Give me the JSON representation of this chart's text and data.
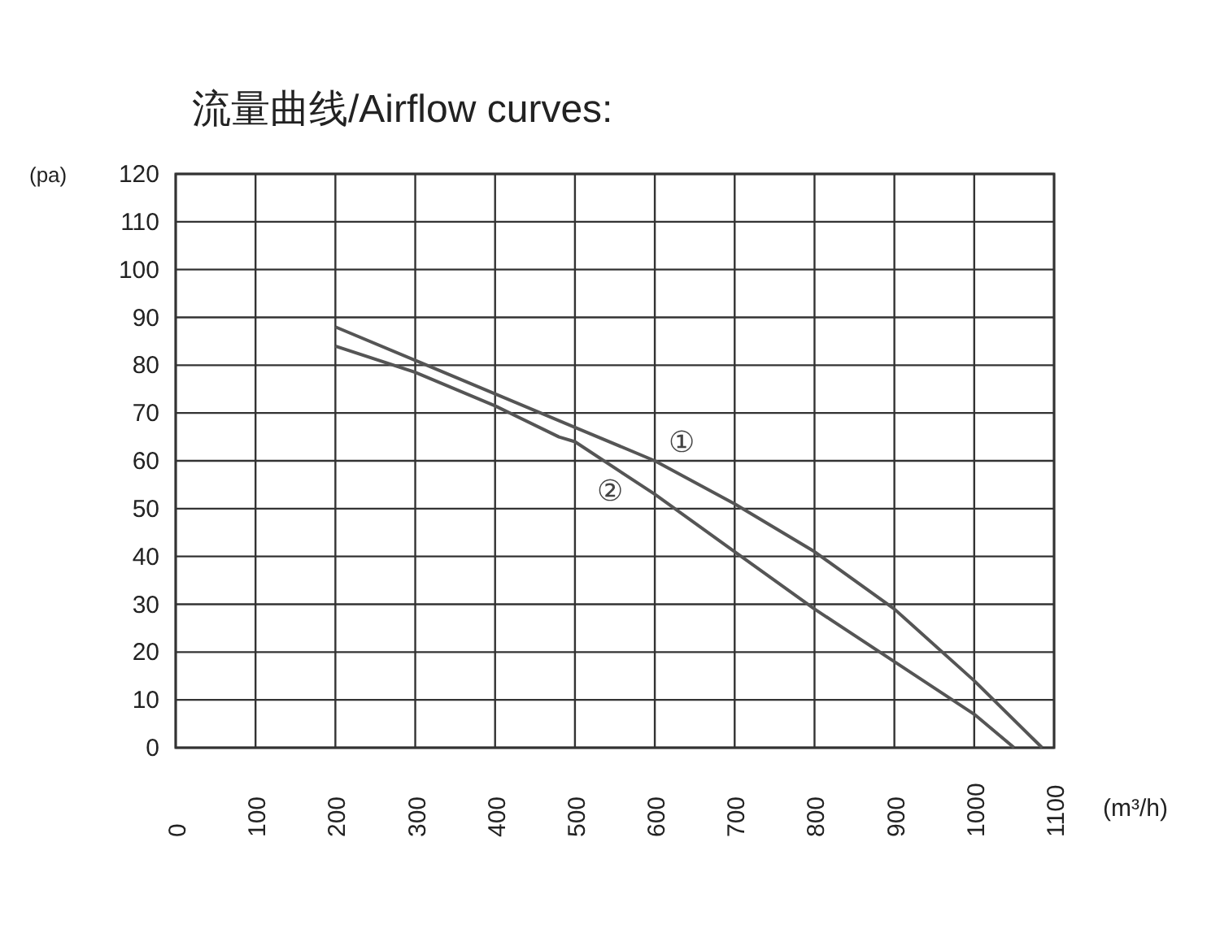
{
  "chart_data": {
    "type": "line",
    "title": "流量曲线/Airflow curves:",
    "xlabel": "(m³/h)",
    "ylabel": "(pa)",
    "xlim": [
      0,
      1100
    ],
    "xticks": [
      0,
      100,
      200,
      300,
      400,
      500,
      600,
      700,
      800,
      900,
      1000,
      1100
    ],
    "ylim": [
      0,
      120
    ],
    "yticks": [
      0,
      10,
      20,
      30,
      40,
      50,
      60,
      70,
      80,
      90,
      100,
      110,
      120
    ],
    "grid": true,
    "marker": "none",
    "line_style": "solid",
    "series": [
      {
        "color": "#555555",
        "x": [
          200,
          300,
          400,
          500,
          600,
          700,
          800,
          900,
          1000,
          1085
        ],
        "values": [
          88,
          81,
          74,
          67,
          60,
          51,
          41,
          29,
          14,
          0
        ]
      },
      {
        "color": "#555555",
        "x": [
          200,
          300,
          400,
          480,
          500,
          600,
          700,
          800,
          900,
          1000,
          1050
        ],
        "values": [
          84,
          78.5,
          71.5,
          65,
          64,
          53,
          41,
          29,
          18,
          7,
          0
        ]
      }
    ],
    "annotations": [
      "①",
      "②"
    ]
  }
}
